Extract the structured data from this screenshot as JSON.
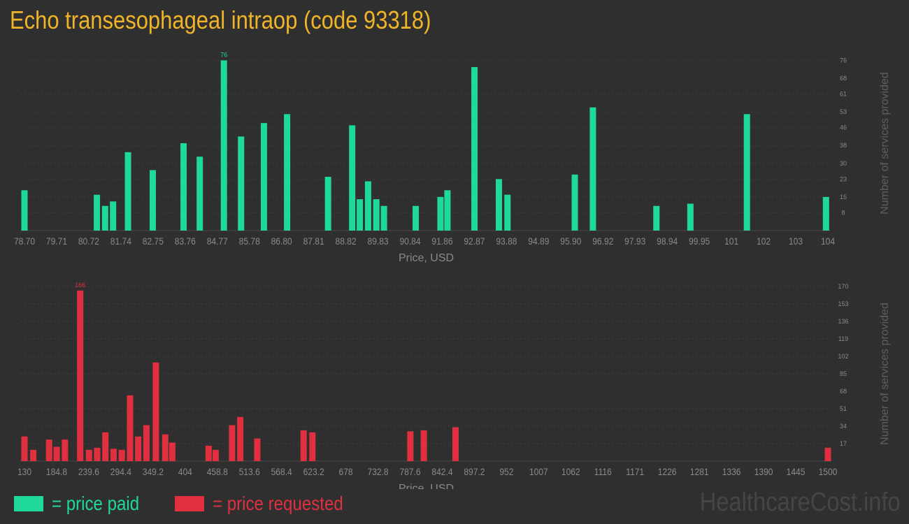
{
  "title": "Echo transesophageal intraop (code 93318)",
  "legend": {
    "paid_label": "= price paid",
    "requested_label": "= price requested",
    "paid_color": "#1fd99a",
    "requested_color": "#e03040"
  },
  "brand": "HealthcareCost.info",
  "chart_data": [
    {
      "type": "bar",
      "title": "",
      "xlabel": "Price, USD",
      "ylabel": "Number of services provided",
      "color": "#1fd99a",
      "x_range": [
        78.7,
        104
      ],
      "ylim": [
        0,
        78
      ],
      "y_ticks": [
        "8",
        "15",
        "23",
        "30",
        "38",
        "46",
        "53",
        "61",
        "68",
        "76"
      ],
      "x_ticks": [
        "78.70",
        "79.71",
        "80.72",
        "81.74",
        "82.75",
        "83.76",
        "84.77",
        "85.78",
        "86.80",
        "87.81",
        "88.82",
        "89.83",
        "90.84",
        "91.86",
        "92.87",
        "93.88",
        "94.89",
        "95.90",
        "96.92",
        "97.93",
        "98.94",
        "99.95",
        "101",
        "102",
        "103",
        "104"
      ],
      "max_label": "76",
      "x": [
        78.7,
        80.98,
        81.24,
        81.49,
        81.96,
        82.74,
        83.71,
        84.22,
        84.98,
        85.52,
        86.24,
        86.97,
        88.26,
        89.02,
        89.26,
        89.52,
        89.78,
        90.02,
        91.02,
        91.8,
        92.02,
        92.87,
        93.64,
        93.91,
        96.03,
        96.6,
        98.6,
        99.67,
        101.45,
        103.94
      ],
      "values": [
        18,
        16,
        11,
        13,
        35,
        27,
        39,
        33,
        76,
        42,
        48,
        52,
        24,
        47,
        14,
        22,
        14,
        11,
        11,
        15,
        18,
        73,
        23,
        16,
        25,
        55,
        11,
        12,
        52,
        15
      ]
    },
    {
      "type": "bar",
      "title": "",
      "xlabel": "Price, USD",
      "ylabel": "Number of services provided",
      "color": "#e03040",
      "x_range": [
        130,
        1500
      ],
      "ylim": [
        0,
        170
      ],
      "y_ticks": [
        "17",
        "34",
        "51",
        "68",
        "85",
        "102",
        "119",
        "136",
        "153",
        "170"
      ],
      "x_ticks": [
        "130",
        "184.8",
        "239.6",
        "294.4",
        "349.2",
        "404",
        "458.8",
        "513.6",
        "568.4",
        "623.2",
        "678",
        "732.8",
        "787.6",
        "842.4",
        "897.2",
        "952",
        "1007",
        "1062",
        "1116",
        "1171",
        "1226",
        "1281",
        "1336",
        "1390",
        "1445",
        "1500"
      ],
      "max_label": "166",
      "x": [
        130,
        145,
        172,
        185,
        199,
        225,
        240,
        254,
        268,
        282,
        296,
        310,
        324,
        338,
        354,
        370,
        382,
        444,
        456,
        484,
        498,
        527,
        606,
        621,
        788,
        811,
        865,
        1500
      ],
      "values": [
        24,
        11,
        21,
        14,
        21,
        166,
        11,
        13,
        28,
        12,
        11,
        64,
        24,
        35,
        96,
        26,
        18,
        15,
        11,
        35,
        43,
        22,
        30,
        28,
        29,
        30,
        33,
        13
      ]
    }
  ]
}
